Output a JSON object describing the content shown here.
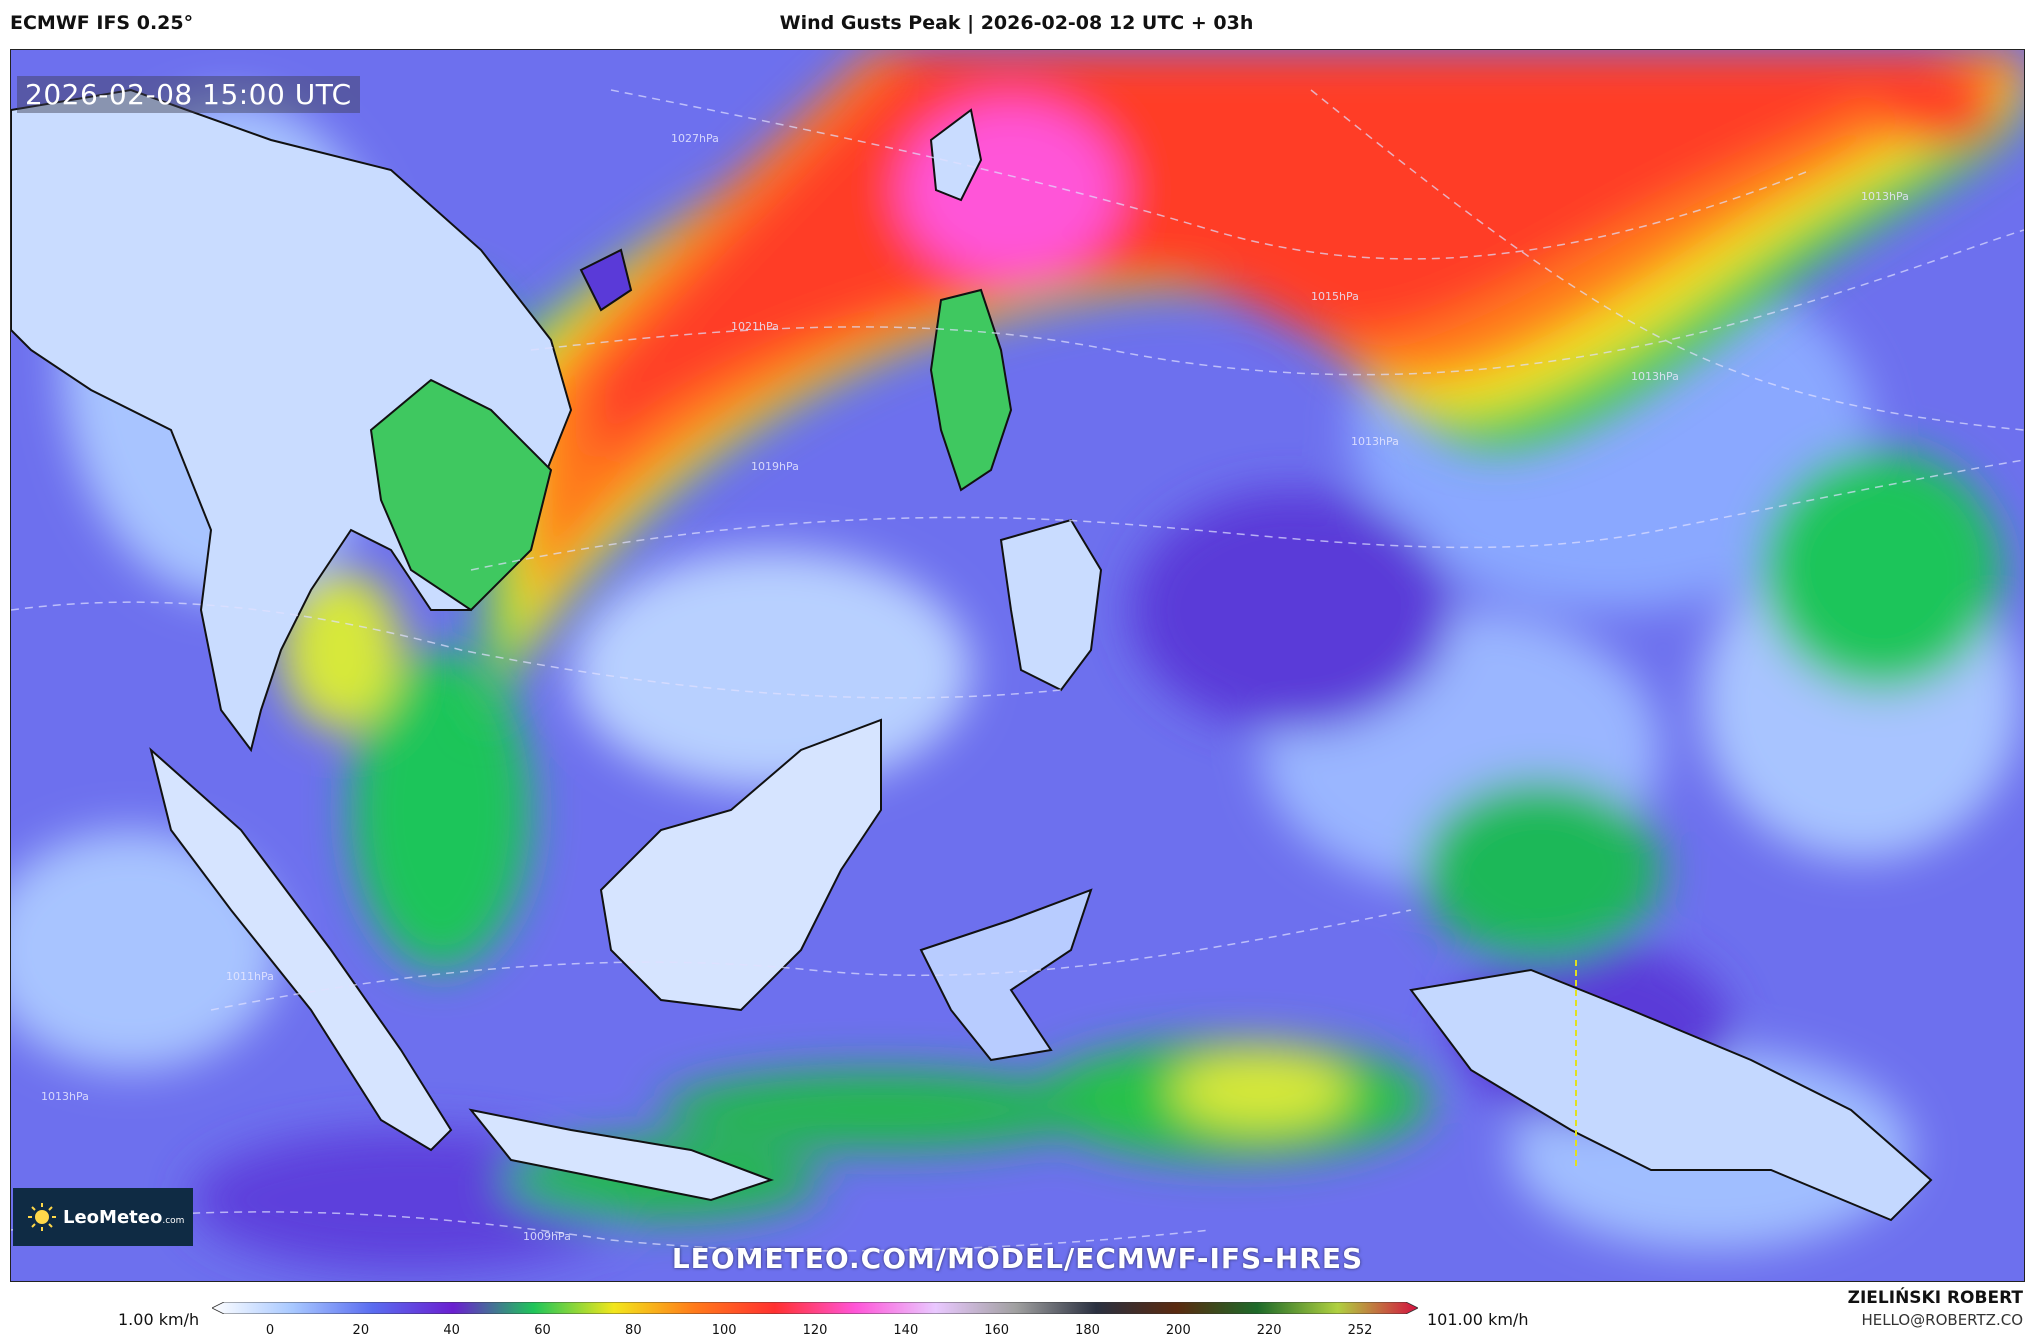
{
  "header": {
    "model": "ECMWF IFS 0.25°",
    "title": "Wind Gusts Peak | 2026-02-08 12 UTC + 03h"
  },
  "map": {
    "valid_time": "2026-02-08 15:00 UTC",
    "pressure_labels": [
      "1027hPa",
      "1021hPa",
      "1019hPa",
      "1015hPa",
      "1013hPa",
      "1013hPa",
      "1013hPa",
      "1011hPa",
      "1013hPa",
      "1009hPa"
    ],
    "watermark": "LEOMETEO.COM/MODEL/ECMWF-IFS-HRES",
    "logo": {
      "name": "LeoMeteo",
      "suffix": ".com"
    }
  },
  "colorbar": {
    "min_label": "1.00 km/h",
    "max_label": "101.00 km/h",
    "ticks": [
      "0",
      "20",
      "40",
      "60",
      "80",
      "100",
      "120",
      "140",
      "160",
      "180",
      "200",
      "220",
      "252"
    ],
    "colors": [
      "#ffffff",
      "#a8c8ff",
      "#5a6cf0",
      "#6a1fd0",
      "#1fc55a",
      "#f2e61c",
      "#ff7a1a",
      "#ff3030",
      "#ff55d8",
      "#e9c8ff",
      "#a0a0a0",
      "#2a3040",
      "#5a2a10",
      "#1e6a2a",
      "#b0d040",
      "#d41040"
    ]
  },
  "author": {
    "name": "ZIELIŃSKI ROBERT",
    "email": "HELLO@ROBERTZ.CO"
  }
}
